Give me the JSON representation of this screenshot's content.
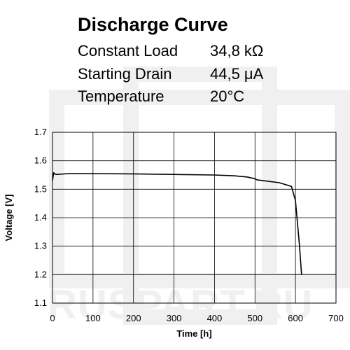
{
  "header": {
    "title": "Discharge Curve",
    "specs": [
      {
        "label": "Constant Load",
        "value": "34,8 kΩ"
      },
      {
        "label": "Starting Drain",
        "value": "44,5 μA"
      },
      {
        "label": "Temperature",
        "value": "20°C"
      }
    ]
  },
  "watermark": {
    "text": "RUSPART.RU"
  },
  "chart_data": {
    "type": "line",
    "title": "Discharge Curve",
    "xlabel": "Time [h]",
    "ylabel": "Voltage [V]",
    "xlim": [
      0,
      700
    ],
    "ylim": [
      1.1,
      1.7
    ],
    "x_ticks": [
      0,
      100,
      200,
      300,
      400,
      500,
      600,
      700
    ],
    "y_ticks": [
      1.1,
      1.2,
      1.3,
      1.4,
      1.5,
      1.6,
      1.7
    ],
    "x_tick_labels": [
      "0",
      "100",
      "200",
      "300",
      "400",
      "500",
      "600",
      "700"
    ],
    "y_tick_labels": [
      "1.1",
      "1.2",
      "1.3",
      "1.4",
      "1.5",
      "1.6",
      "1.7"
    ],
    "grid": true,
    "legend": "none",
    "series": [
      {
        "color": "#000000",
        "x": [
          0,
          3,
          6,
          10,
          20,
          40,
          100,
          200,
          300,
          400,
          450,
          480,
          500,
          505,
          520,
          560,
          590,
          600,
          610,
          615
        ],
        "y": [
          1.53,
          1.558,
          1.553,
          1.552,
          1.553,
          1.555,
          1.555,
          1.554,
          1.552,
          1.55,
          1.547,
          1.543,
          1.537,
          1.533,
          1.53,
          1.523,
          1.51,
          1.46,
          1.3,
          1.2
        ]
      }
    ]
  }
}
